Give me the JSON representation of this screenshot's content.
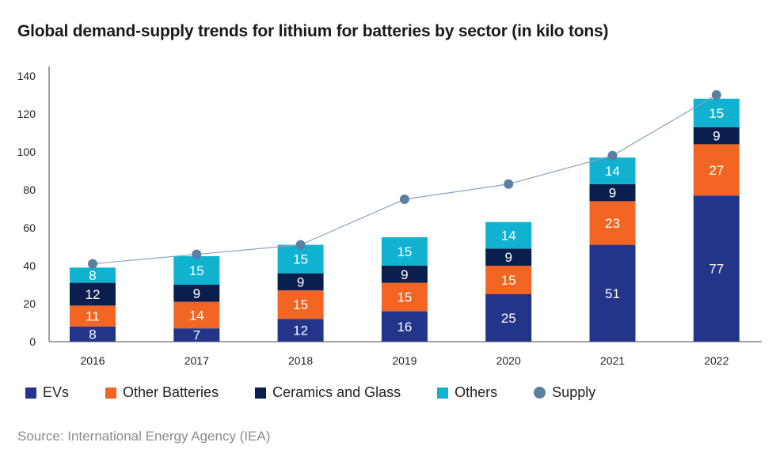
{
  "title": "Global demand-supply trends for lithium for batteries by sector (in kilo tons)",
  "source": "Source: International Energy Agency (IEA)",
  "colors": {
    "EVs": "#22358a",
    "Other Batteries": "#f26522",
    "Ceramics and Glass": "#0a1f4d",
    "Others": "#10b2cf",
    "Supply": "#5b7ea3",
    "supply_line": "#8aa2bd"
  },
  "chart_data": {
    "type": "bar",
    "stacked": true,
    "title": "Global demand-supply trends for lithium for batteries by sector (in kilo tons)",
    "categories": [
      "2016",
      "2017",
      "2018",
      "2019",
      "2020",
      "2021",
      "2022"
    ],
    "ylim": [
      0,
      140
    ],
    "yticks": [
      0,
      20,
      40,
      60,
      80,
      100,
      120,
      140
    ],
    "grid": false,
    "legend_position": "bottom",
    "series": [
      {
        "name": "EVs",
        "values": [
          8,
          7,
          12,
          16,
          25,
          51,
          77
        ]
      },
      {
        "name": "Other Batteries",
        "values": [
          11,
          14,
          15,
          15,
          15,
          23,
          27
        ]
      },
      {
        "name": "Ceramics and Glass",
        "values": [
          12,
          9,
          9,
          9,
          9,
          9,
          9
        ]
      },
      {
        "name": "Others",
        "values": [
          8,
          15,
          15,
          15,
          14,
          14,
          15
        ]
      }
    ],
    "supply": {
      "name": "Supply",
      "type": "line",
      "values": [
        41,
        46,
        51,
        75,
        83,
        98,
        130
      ]
    }
  },
  "legend": [
    {
      "label": "EVs",
      "icon": "square"
    },
    {
      "label": "Other Batteries",
      "icon": "square"
    },
    {
      "label": "Ceramics and Glass",
      "icon": "square"
    },
    {
      "label": "Others",
      "icon": "square"
    },
    {
      "label": "Supply",
      "icon": "circle"
    }
  ]
}
